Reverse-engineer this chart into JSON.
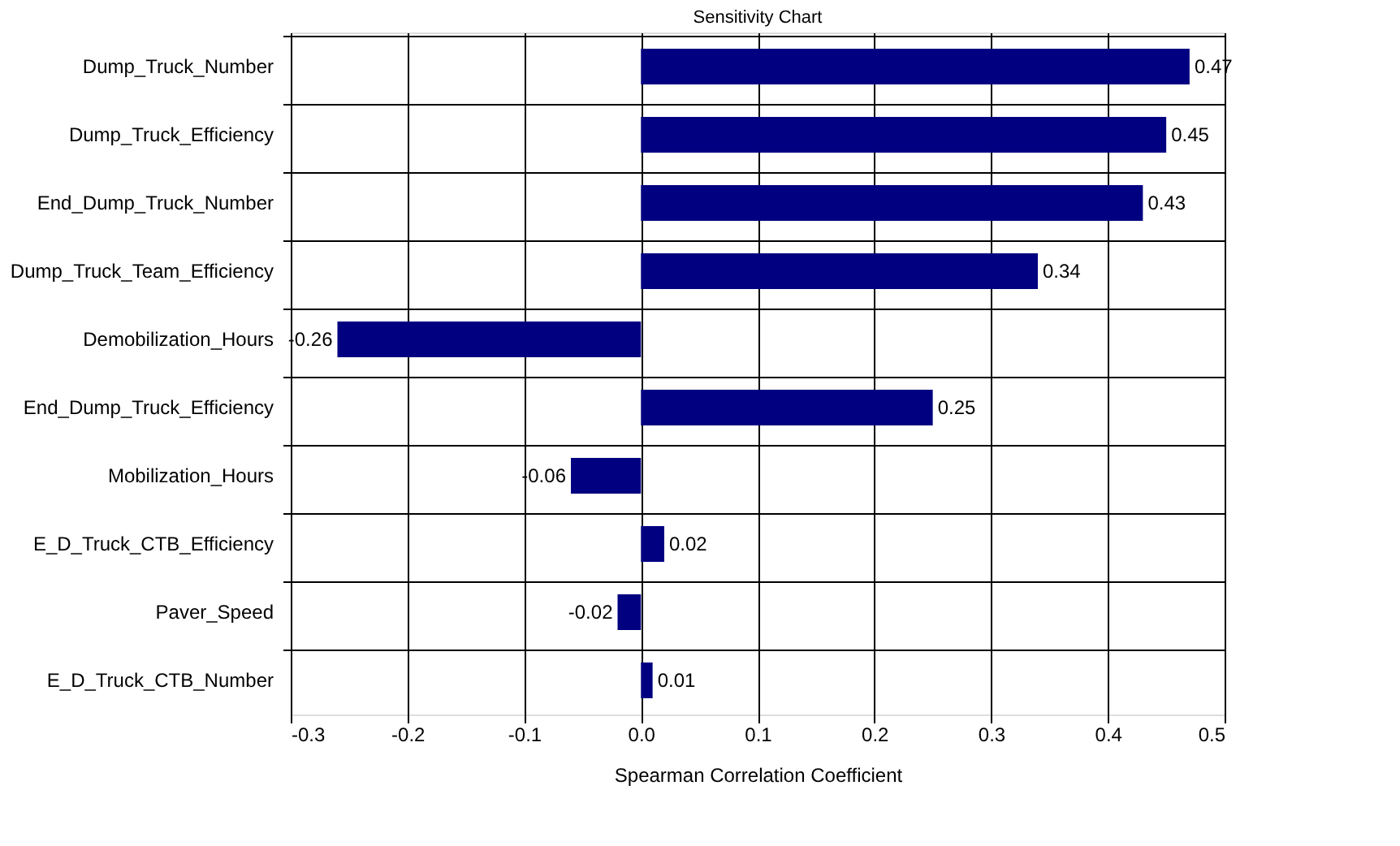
{
  "chart_data": {
    "type": "bar",
    "orientation": "horizontal",
    "title": "Sensitivity Chart",
    "xlabel": "Spearman Correlation Coefficient",
    "categories": [
      "Dump_Truck_Number",
      "Dump_Truck_Efficiency",
      "End_Dump_Truck_Number",
      "Dump_Truck_Team_Efficiency",
      "Demobilization_Hours",
      "End_Dump_Truck_Efficiency",
      "Mobilization_Hours",
      "E_D_Truck_CTB_Efficiency",
      "Paver_Speed",
      "E_D_Truck_CTB_Number"
    ],
    "values": [
      0.47,
      0.45,
      0.43,
      0.34,
      -0.26,
      0.25,
      -0.06,
      0.02,
      -0.02,
      0.01
    ],
    "color": "#000080",
    "data_labels": true,
    "grid": true,
    "xlim": [
      -0.3,
      0.5
    ],
    "xticks": [
      -0.3,
      -0.2,
      -0.1,
      {
        "value": 0,
        "label": "0.0"
      },
      0.1,
      0.2,
      0.3,
      0.4,
      0.5
    ]
  }
}
